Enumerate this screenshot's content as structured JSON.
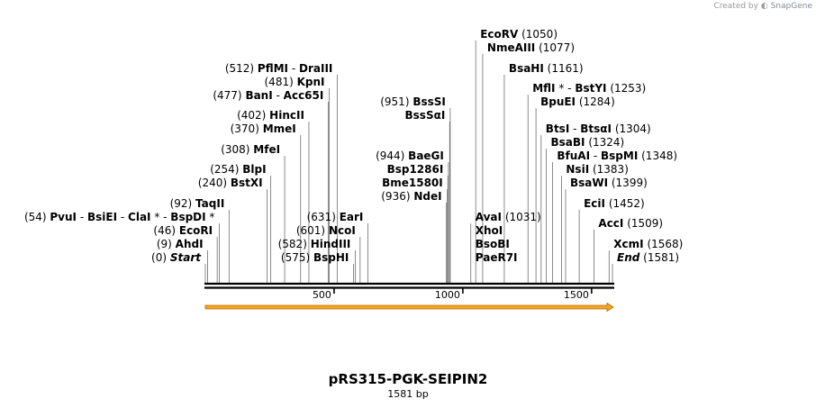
{
  "credit": {
    "prefix": "Created by",
    "brand": "SnapGene"
  },
  "plasmid": {
    "name": "pRS315-PGK-SEIPIN2",
    "length_label": "1581 bp",
    "length": 1581
  },
  "ruler": {
    "ticks": [
      {
        "pos": 500,
        "label": "500"
      },
      {
        "pos": 1000,
        "label": "1000"
      },
      {
        "pos": 1500,
        "label": "1500"
      }
    ]
  },
  "feature": {
    "name": "orange-arrow",
    "start": 1,
    "end": 1581,
    "color": "#f5a623"
  },
  "colors": {
    "line": "#000000",
    "feature_fill": "#f5a623",
    "feature_edge": "#b06a00"
  },
  "labels": [
    {
      "pos": 0,
      "parts": [
        {
          "t": "(0)  "
        },
        {
          "t": "Start",
          "s": "it"
        }
      ]
    },
    {
      "pos": 9,
      "parts": [
        {
          "t": "(9)  "
        },
        {
          "t": "AhdI",
          "s": "enz"
        }
      ]
    },
    {
      "pos": 46,
      "parts": [
        {
          "t": "(46)  "
        },
        {
          "t": "EcoRI",
          "s": "enz"
        }
      ]
    },
    {
      "pos": 54,
      "parts": [
        {
          "t": "(54)  "
        },
        {
          "t": "PvuI",
          "s": "enz"
        },
        {
          "t": "  -  "
        },
        {
          "t": "BsiEI",
          "s": "enz"
        },
        {
          "t": "  -  "
        },
        {
          "t": "ClaI",
          "s": "enz"
        },
        {
          "t": " *  -  "
        },
        {
          "t": "BspDI",
          "s": "enz"
        },
        {
          "t": " *"
        }
      ]
    },
    {
      "pos": 92,
      "parts": [
        {
          "t": "(92)  "
        },
        {
          "t": "TaqII",
          "s": "enz"
        }
      ]
    },
    {
      "pos": 240,
      "parts": [
        {
          "t": "(240)  "
        },
        {
          "t": "BstXI",
          "s": "enz"
        }
      ]
    },
    {
      "pos": 254,
      "parts": [
        {
          "t": "(254)  "
        },
        {
          "t": "BlpI",
          "s": "enz"
        }
      ]
    },
    {
      "pos": 308,
      "parts": [
        {
          "t": "(308)  "
        },
        {
          "t": "MfeI",
          "s": "enz"
        }
      ]
    },
    {
      "pos": 370,
      "parts": [
        {
          "t": "(370)  "
        },
        {
          "t": "MmeI",
          "s": "enz"
        }
      ]
    },
    {
      "pos": 402,
      "parts": [
        {
          "t": "(402)  "
        },
        {
          "t": "HincII",
          "s": "enz"
        }
      ]
    },
    {
      "pos": 477,
      "parts": [
        {
          "t": "(477)  "
        },
        {
          "t": "BanI",
          "s": "enz"
        },
        {
          "t": "  -  "
        },
        {
          "t": "Acc65I",
          "s": "enz"
        }
      ]
    },
    {
      "pos": 481,
      "parts": [
        {
          "t": "(481)  "
        },
        {
          "t": "KpnI",
          "s": "enz"
        }
      ]
    },
    {
      "pos": 512,
      "parts": [
        {
          "t": "(512)  "
        },
        {
          "t": "PflMI",
          "s": "enz"
        },
        {
          "t": "  -  "
        },
        {
          "t": "DraIII",
          "s": "enz"
        }
      ]
    },
    {
      "pos": 575,
      "parts": [
        {
          "t": "(575)  "
        },
        {
          "t": "BspHI",
          "s": "enz"
        }
      ]
    },
    {
      "pos": 582,
      "parts": [
        {
          "t": "(582)  "
        },
        {
          "t": "HindIII",
          "s": "enz"
        }
      ]
    },
    {
      "pos": 601,
      "parts": [
        {
          "t": "(601)  "
        },
        {
          "t": "NcoI",
          "s": "enz"
        }
      ]
    },
    {
      "pos": 631,
      "parts": [
        {
          "t": "(631)  "
        },
        {
          "t": "EarI",
          "s": "enz"
        }
      ]
    },
    {
      "pos": 936,
      "parts": [
        {
          "t": "(936)  "
        },
        {
          "t": "NdeI",
          "s": "enz"
        }
      ]
    },
    {
      "pos": 940,
      "parts": [
        {
          "t": "Bme1580I",
          "s": "enz"
        }
      ]
    },
    {
      "pos": 942,
      "parts": [
        {
          "t": "Bsp1286I",
          "s": "enz"
        }
      ]
    },
    {
      "pos": 944,
      "parts": [
        {
          "t": "(944)  "
        },
        {
          "t": "BaeGI",
          "s": "enz"
        }
      ]
    },
    {
      "pos": 949,
      "parts": [
        {
          "t": "BssSαI",
          "s": "enz"
        }
      ]
    },
    {
      "pos": 951,
      "parts": [
        {
          "t": "(951)  "
        },
        {
          "t": "BssSI",
          "s": "enz"
        }
      ]
    },
    {
      "pos": 1031,
      "parts": [
        {
          "t": "AvaI",
          "s": "enz"
        },
        {
          "t": "  (1031)"
        }
      ]
    },
    {
      "pos": 1031,
      "parts": [
        {
          "t": "XhoI",
          "s": "enz"
        }
      ]
    },
    {
      "pos": 1031,
      "parts": [
        {
          "t": "BsoBI",
          "s": "enz"
        }
      ]
    },
    {
      "pos": 1031,
      "parts": [
        {
          "t": "PaeR7I",
          "s": "enz"
        }
      ]
    },
    {
      "pos": 1050,
      "parts": [
        {
          "t": "EcoRV",
          "s": "enz"
        },
        {
          "t": "  (1050)"
        }
      ]
    },
    {
      "pos": 1077,
      "parts": [
        {
          "t": "NmeAIII",
          "s": "enz"
        },
        {
          "t": "  (1077)"
        }
      ]
    },
    {
      "pos": 1161,
      "parts": [
        {
          "t": "BsaHI",
          "s": "enz"
        },
        {
          "t": "  (1161)"
        }
      ]
    },
    {
      "pos": 1253,
      "parts": [
        {
          "t": "MflI",
          "s": "enz"
        },
        {
          "t": " *  -  "
        },
        {
          "t": "BstYI",
          "s": "enz"
        },
        {
          "t": "  (1253)"
        }
      ]
    },
    {
      "pos": 1284,
      "parts": [
        {
          "t": "BpuEI",
          "s": "enz"
        },
        {
          "t": "  (1284)"
        }
      ]
    },
    {
      "pos": 1304,
      "parts": [
        {
          "t": "BtsI",
          "s": "enz"
        },
        {
          "t": "  -  "
        },
        {
          "t": "BtsαI",
          "s": "enz"
        },
        {
          "t": "  (1304)"
        }
      ]
    },
    {
      "pos": 1324,
      "parts": [
        {
          "t": "BsaBI",
          "s": "enz"
        },
        {
          "t": "  (1324)"
        }
      ]
    },
    {
      "pos": 1348,
      "parts": [
        {
          "t": "BfuAI",
          "s": "enz"
        },
        {
          "t": "  -  "
        },
        {
          "t": "BspMI",
          "s": "enz"
        },
        {
          "t": "  (1348)"
        }
      ]
    },
    {
      "pos": 1383,
      "parts": [
        {
          "t": "NsiI",
          "s": "enz"
        },
        {
          "t": "  (1383)"
        }
      ]
    },
    {
      "pos": 1399,
      "parts": [
        {
          "t": "BsaWI",
          "s": "enz"
        },
        {
          "t": "  (1399)"
        }
      ]
    },
    {
      "pos": 1452,
      "parts": [
        {
          "t": "EciI",
          "s": "enz"
        },
        {
          "t": "  (1452)"
        }
      ]
    },
    {
      "pos": 1509,
      "parts": [
        {
          "t": "AccI",
          "s": "enz"
        },
        {
          "t": "  (1509)"
        }
      ]
    },
    {
      "pos": 1568,
      "parts": [
        {
          "t": "XcmI",
          "s": "enz"
        },
        {
          "t": "  (1568)"
        }
      ]
    },
    {
      "pos": 1581,
      "parts": [
        {
          "t": "End",
          "s": "it"
        },
        {
          "t": "  (1581)"
        }
      ]
    }
  ]
}
